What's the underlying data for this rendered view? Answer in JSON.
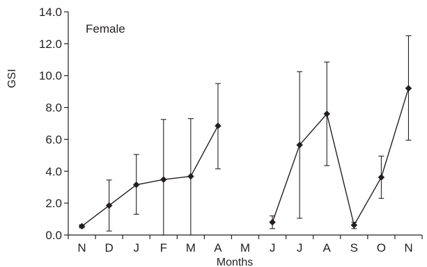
{
  "chart_data": {
    "type": "line",
    "title": "",
    "xlabel": "Months",
    "ylabel": "GSI",
    "annotation": "Female",
    "ylim": [
      0,
      14
    ],
    "yticks": [
      "0.0",
      "2.0",
      "4.0",
      "6.0",
      "8.0",
      "10.0",
      "12.0",
      "14.0"
    ],
    "categories": [
      "N",
      "D",
      "J",
      "F",
      "M",
      "A",
      "M",
      "J",
      "J",
      "A",
      "S",
      "O",
      "N"
    ],
    "grid": false,
    "legend": "none",
    "series": [
      {
        "values": [
          0.55,
          1.85,
          3.15,
          3.48,
          3.68,
          6.85,
          null,
          0.8,
          5.65,
          7.6,
          0.62,
          3.62,
          9.2
        ],
        "error_low": [
          0.45,
          0.25,
          1.3,
          0.0,
          0.0,
          4.15,
          null,
          0.4,
          1.05,
          4.35,
          0.4,
          2.3,
          5.95
        ],
        "error_high": [
          0.65,
          3.45,
          5.05,
          7.25,
          7.3,
          9.5,
          null,
          1.2,
          10.25,
          10.85,
          0.8,
          4.95,
          12.5
        ]
      }
    ],
    "color": "#231f20"
  }
}
